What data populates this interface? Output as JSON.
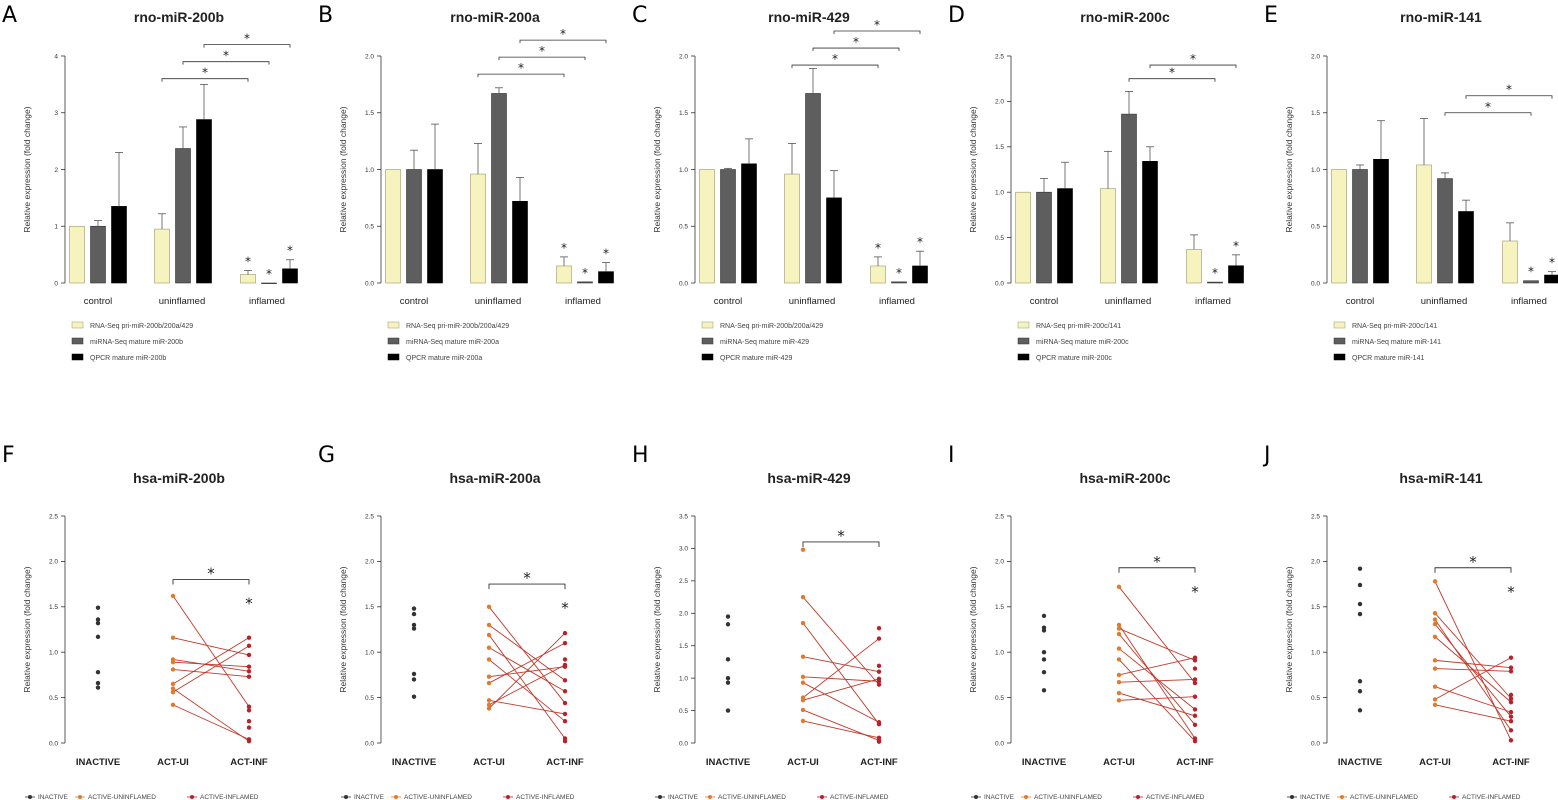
{
  "colors": {
    "rna": "#f6f3bf",
    "rna_stroke": "#9a9870",
    "mirna": "#5e5e5e",
    "qpcr": "#000000",
    "inactive": "#333333",
    "active_ui": "#e07a2e",
    "active_inf": "#b8232a",
    "line": "#c0392b"
  },
  "chart_data": [
    {
      "panel": "A",
      "type": "bar",
      "title": "rno-miR-200b",
      "ylabel": "Relative expression (fold change)",
      "ylim": [
        0,
        4
      ],
      "yticks": [
        "0",
        "1",
        "2",
        "3",
        "4"
      ],
      "categories": [
        "control",
        "uninflamed",
        "inflamed"
      ],
      "series": [
        {
          "name": "RNA-Seq pri-miR-200b/200a/429",
          "values": [
            1.0,
            0.95,
            0.15
          ],
          "errors": [
            0,
            0.27,
            0.07
          ]
        },
        {
          "name": "miRNA-Seq mature miR-200b",
          "values": [
            1.0,
            2.37,
            0.0
          ],
          "errors": [
            0.1,
            0.38,
            0
          ]
        },
        {
          "name": "QPCR mature miR-200b",
          "values": [
            1.35,
            2.88,
            0.25
          ],
          "errors": [
            0.95,
            0.62,
            0.16
          ]
        }
      ],
      "inflamed_stars": [
        "*",
        "*",
        "*"
      ],
      "brackets": [
        {
          "label": "*",
          "from": [
            1,
            0
          ],
          "to": [
            2,
            0
          ],
          "y": 3.6
        },
        {
          "label": "*",
          "from": [
            1,
            1
          ],
          "to": [
            2,
            1
          ],
          "y": 3.9
        },
        {
          "label": "*",
          "from": [
            1,
            2
          ],
          "to": [
            2,
            2
          ],
          "y": 4.2
        }
      ]
    },
    {
      "panel": "B",
      "type": "bar",
      "title": "rno-miR-200a",
      "ylabel": "Relative expression (fold change)",
      "ylim": [
        0,
        2
      ],
      "yticks": [
        "0.0",
        "0.5",
        "1.0",
        "1.5",
        "2.0"
      ],
      "categories": [
        "control",
        "uninflamed",
        "inflamed"
      ],
      "series": [
        {
          "name": "RNA-Seq pri-miR-200b/200a/429",
          "values": [
            1.0,
            0.96,
            0.15
          ],
          "errors": [
            0,
            0.27,
            0.08
          ]
        },
        {
          "name": "miRNA-Seq mature miR-200a",
          "values": [
            1.0,
            1.67,
            0.01
          ],
          "errors": [
            0.17,
            0.05,
            0
          ]
        },
        {
          "name": "QPCR mature miR-200a",
          "values": [
            1.0,
            0.72,
            0.1
          ],
          "errors": [
            0.4,
            0.21,
            0.08
          ]
        }
      ],
      "inflamed_stars": [
        "*",
        "*",
        "*"
      ],
      "brackets": [
        {
          "label": "*",
          "from": [
            1,
            0
          ],
          "to": [
            2,
            0
          ],
          "y": 1.84
        },
        {
          "label": "*",
          "from": [
            1,
            1
          ],
          "to": [
            2,
            1
          ],
          "y": 1.99
        },
        {
          "label": "*",
          "from": [
            1,
            2
          ],
          "to": [
            2,
            2
          ],
          "y": 2.14
        }
      ]
    },
    {
      "panel": "C",
      "type": "bar",
      "title": "rno-miR-429",
      "ylabel": "Relative expression (fold change)",
      "ylim": [
        0,
        2
      ],
      "yticks": [
        "0.0",
        "0.5",
        "1.0",
        "1.5",
        "2.0"
      ],
      "categories": [
        "control",
        "uninflamed",
        "inflamed"
      ],
      "series": [
        {
          "name": "RNA-Seq pri-miR-200b/200a/429",
          "values": [
            1.0,
            0.96,
            0.15
          ],
          "errors": [
            0,
            0.27,
            0.08
          ]
        },
        {
          "name": "miRNA-Seq mature miR-429",
          "values": [
            1.0,
            1.67,
            0.01
          ],
          "errors": [
            0.01,
            0.22,
            0
          ]
        },
        {
          "name": "QPCR mature miR-429",
          "values": [
            1.05,
            0.75,
            0.15
          ],
          "errors": [
            0.22,
            0.24,
            0.13
          ]
        }
      ],
      "inflamed_stars": [
        "*",
        "*",
        "*"
      ],
      "brackets": [
        {
          "label": "*",
          "from": [
            1,
            0
          ],
          "to": [
            2,
            0
          ],
          "y": 1.92
        },
        {
          "label": "*",
          "from": [
            1,
            1
          ],
          "to": [
            2,
            1
          ],
          "y": 2.07
        },
        {
          "label": "*",
          "from": [
            1,
            2
          ],
          "to": [
            2,
            2
          ],
          "y": 2.22
        }
      ]
    },
    {
      "panel": "D",
      "type": "bar",
      "title": "rno-miR-200c",
      "ylabel": "Relative expression (fold change)",
      "ylim": [
        0,
        2.5
      ],
      "yticks": [
        "0.0",
        "0.5",
        "1.0",
        "1.5",
        "2.0",
        "2.5"
      ],
      "categories": [
        "control",
        "uninflamed",
        "inflamed"
      ],
      "series": [
        {
          "name": "RNA-Seq pri-miR-200c/141",
          "values": [
            1.0,
            1.04,
            0.37
          ],
          "errors": [
            0,
            0.41,
            0.16
          ]
        },
        {
          "name": "miRNA-Seq mature miR-200c",
          "values": [
            1.0,
            1.86,
            0.01
          ],
          "errors": [
            0.15,
            0.25,
            0
          ]
        },
        {
          "name": "QPCR mature miR-200c",
          "values": [
            1.04,
            1.34,
            0.19
          ],
          "errors": [
            0.29,
            0.16,
            0.12
          ]
        }
      ],
      "inflamed_stars": [
        "",
        "*",
        "*"
      ],
      "brackets": [
        {
          "label": "*",
          "from": [
            1,
            1
          ],
          "to": [
            2,
            1
          ],
          "y": 2.25
        },
        {
          "label": "*",
          "from": [
            1,
            2
          ],
          "to": [
            2,
            2
          ],
          "y": 2.4
        }
      ]
    },
    {
      "panel": "E",
      "type": "bar",
      "title": "rno-miR-141",
      "ylabel": "Relative expression (fold change)",
      "ylim": [
        0,
        2
      ],
      "yticks": [
        "0.0",
        "0.5",
        "1.0",
        "1.5",
        "2.0"
      ],
      "categories": [
        "control",
        "uninflamed",
        "inflamed"
      ],
      "series": [
        {
          "name": "RNA-Seq pri-miR-200c/141",
          "values": [
            1.0,
            1.04,
            0.37
          ],
          "errors": [
            0,
            0.41,
            0.16
          ]
        },
        {
          "name": "miRNA-Seq mature miR-141",
          "values": [
            1.0,
            0.92,
            0.02
          ],
          "errors": [
            0.04,
            0.05,
            0
          ]
        },
        {
          "name": "QPCR mature miR-141",
          "values": [
            1.09,
            0.63,
            0.07
          ],
          "errors": [
            0.34,
            0.1,
            0.03
          ]
        }
      ],
      "inflamed_stars": [
        "",
        "*",
        "*"
      ],
      "brackets": [
        {
          "label": "*",
          "from": [
            1,
            1
          ],
          "to": [
            2,
            1
          ],
          "y": 1.5
        },
        {
          "label": "*",
          "from": [
            1,
            2
          ],
          "to": [
            2,
            2
          ],
          "y": 1.65
        }
      ]
    },
    {
      "panel": "F",
      "type": "scatter",
      "title": "hsa-miR-200b",
      "ylabel": "Relative expression (fold change)",
      "ylim": [
        0,
        2.5
      ],
      "yticks": [
        "0.0",
        "0.5",
        "1.0",
        "1.5",
        "2.0",
        "2.5"
      ],
      "categories": [
        "INACTIVE",
        "ACT-UI",
        "ACT-INF"
      ],
      "inactive": [
        1.49,
        1.36,
        1.32,
        1.17,
        0.78,
        0.66,
        0.61
      ],
      "act_ui": [
        1.62,
        1.16,
        0.92,
        0.89,
        0.81,
        0.65,
        0.6,
        0.56,
        0.42
      ],
      "act_inf": [
        1.16,
        1.07,
        0.97,
        0.84,
        0.79,
        0.73,
        0.4,
        0.36,
        0.24,
        0.17,
        0.04,
        0.02
      ],
      "pairs": [
        [
          1.62,
          0.4
        ],
        [
          1.16,
          0.97
        ],
        [
          0.92,
          0.79
        ],
        [
          0.89,
          0.84
        ],
        [
          0.81,
          0.73
        ],
        [
          0.65,
          1.16
        ],
        [
          0.6,
          0.02
        ],
        [
          0.56,
          1.07
        ],
        [
          0.42,
          0.04
        ]
      ],
      "bracket": {
        "label": "*",
        "y": 1.8
      },
      "inf_star": "*",
      "legend": [
        "INACTIVE",
        "ACTIVE-UNINFLAMED",
        "ACTIVE-INFLAMED"
      ]
    },
    {
      "panel": "G",
      "type": "scatter",
      "title": "hsa-miR-200a",
      "ylabel": "Relative expression (fold change)",
      "ylim": [
        0,
        2.5
      ],
      "yticks": [
        "0.0",
        "0.5",
        "1.0",
        "1.5",
        "2.0",
        "2.5"
      ],
      "categories": [
        "INACTIVE",
        "ACT-UI",
        "ACT-INF"
      ],
      "inactive": [
        1.48,
        1.42,
        1.3,
        1.26,
        0.76,
        0.7,
        0.51
      ],
      "act_ui": [
        1.5,
        1.3,
        1.19,
        1.05,
        0.92,
        0.73,
        0.66,
        0.47,
        0.42,
        0.38
      ],
      "act_inf": [
        1.21,
        1.1,
        0.92,
        0.86,
        0.84,
        0.69,
        0.57,
        0.44,
        0.32,
        0.24,
        0.05,
        0.02
      ],
      "pairs": [
        [
          1.5,
          0.44
        ],
        [
          1.3,
          0.69
        ],
        [
          1.19,
          0.05
        ],
        [
          1.05,
          0.57
        ],
        [
          0.92,
          0.24
        ],
        [
          0.73,
          0.84
        ],
        [
          0.66,
          1.1
        ],
        [
          0.47,
          0.32
        ],
        [
          0.42,
          0.86
        ],
        [
          0.38,
          1.21
        ]
      ],
      "bracket": {
        "label": "*",
        "y": 1.75
      },
      "inf_star": "*",
      "legend": [
        "INACTIVE",
        "ACTIVE-UNINFLAMED",
        "ACTIVE-INFLAMED"
      ]
    },
    {
      "panel": "H",
      "type": "scatter",
      "title": "hsa-miR-429",
      "ylabel": "Relative expression (fold change)",
      "ylim": [
        0,
        3.5
      ],
      "yticks": [
        "0.0",
        "0.5",
        "1.0",
        "1.5",
        "2.0",
        "2.5",
        "3.0",
        "3.5"
      ],
      "categories": [
        "INACTIVE",
        "ACT-UI",
        "ACT-INF"
      ],
      "inactive": [
        1.95,
        1.83,
        1.29,
        1.0,
        0.93,
        0.5
      ],
      "act_ui": [
        2.98,
        2.25,
        1.85,
        1.33,
        1.02,
        0.93,
        0.7,
        0.66,
        0.51,
        0.34
      ],
      "act_inf": [
        1.77,
        1.61,
        1.19,
        1.1,
        0.99,
        0.95,
        0.9,
        0.32,
        0.29,
        0.08,
        0.04,
        0.02
      ],
      "pairs": [
        [
          2.25,
          0.9
        ],
        [
          1.85,
          0.29
        ],
        [
          1.33,
          1.1
        ],
        [
          1.02,
          0.95
        ],
        [
          0.93,
          0.32
        ],
        [
          0.7,
          1.61
        ],
        [
          0.66,
          0.99
        ],
        [
          0.51,
          0.04
        ],
        [
          0.34,
          0.08
        ]
      ],
      "bracket": {
        "label": "*",
        "y": 3.1
      },
      "inf_star": "",
      "legend": [
        "INACTIVE",
        "ACTIVE-UNINFLAMED",
        "ACTIVE-INFLAMED"
      ]
    },
    {
      "panel": "I",
      "type": "scatter",
      "title": "hsa-miR-200c",
      "ylabel": "Relative expression (fold change)",
      "ylim": [
        0,
        2.5
      ],
      "yticks": [
        "0.0",
        "0.5",
        "1.0",
        "1.5",
        "2.0",
        "2.5"
      ],
      "categories": [
        "INACTIVE",
        "ACT-UI",
        "ACT-INF"
      ],
      "inactive": [
        1.4,
        1.27,
        1.24,
        1.0,
        0.92,
        0.78,
        0.58
      ],
      "act_ui": [
        1.72,
        1.3,
        1.26,
        1.2,
        1.04,
        0.92,
        0.75,
        0.67,
        0.55,
        0.47
      ],
      "act_inf": [
        0.94,
        0.91,
        0.82,
        0.7,
        0.66,
        0.51,
        0.37,
        0.3,
        0.2,
        0.05,
        0.02
      ],
      "pairs": [
        [
          1.72,
          0.66
        ],
        [
          1.3,
          0.05
        ],
        [
          1.26,
          0.91
        ],
        [
          1.2,
          0.2
        ],
        [
          1.04,
          0.37
        ],
        [
          0.92,
          0.02
        ],
        [
          0.75,
          0.94
        ],
        [
          0.67,
          0.7
        ],
        [
          0.55,
          0.3
        ],
        [
          0.47,
          0.51
        ]
      ],
      "bracket": {
        "label": "*",
        "y": 1.93
      },
      "inf_star": "*",
      "legend": [
        "INACTIVE",
        "ACTIVE-UNINFLAMED",
        "ACTIVE-INFLAMED"
      ]
    },
    {
      "panel": "J",
      "type": "scatter",
      "title": "hsa-miR-141",
      "ylabel": "Relative expression (fold change)",
      "ylim": [
        0,
        2.5
      ],
      "yticks": [
        "0.0",
        "0.5",
        "1.0",
        "1.5",
        "2.0",
        "2.5"
      ],
      "categories": [
        "INACTIVE",
        "ACT-UI",
        "ACT-INF"
      ],
      "inactive": [
        1.92,
        1.74,
        1.53,
        1.42,
        0.68,
        0.57,
        0.36
      ],
      "act_ui": [
        1.78,
        1.43,
        1.36,
        1.31,
        1.17,
        0.91,
        0.82,
        0.62,
        0.48,
        0.42
      ],
      "act_inf": [
        0.94,
        0.83,
        0.79,
        0.53,
        0.49,
        0.45,
        0.34,
        0.29,
        0.24,
        0.14,
        0.03
      ],
      "pairs": [
        [
          1.78,
          0.03
        ],
        [
          1.43,
          0.49
        ],
        [
          1.36,
          0.14
        ],
        [
          1.31,
          0.29
        ],
        [
          1.17,
          0.45
        ],
        [
          0.91,
          0.83
        ],
        [
          0.82,
          0.79
        ],
        [
          0.62,
          0.34
        ],
        [
          0.48,
          0.94
        ],
        [
          0.42,
          0.24
        ]
      ],
      "bracket": {
        "label": "*",
        "y": 1.93
      },
      "inf_star": "*",
      "legend": [
        "INACTIVE",
        "ACTIVE-UNINFLAMED",
        "ACTIVE-INFLAMED"
      ]
    }
  ]
}
